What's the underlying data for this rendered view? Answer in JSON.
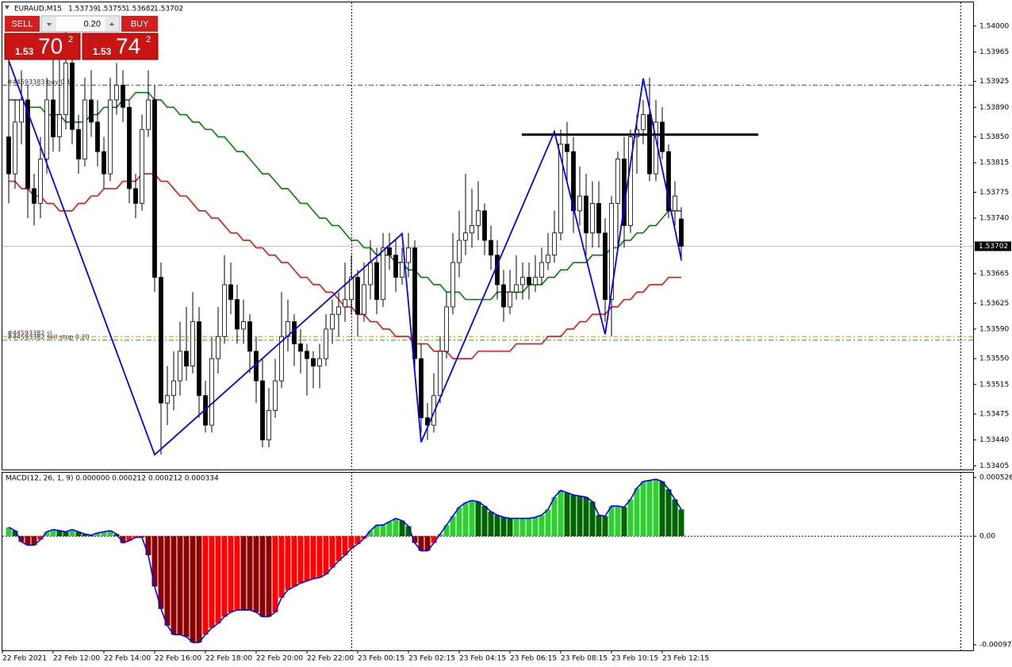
{
  "chart_data": [
    {
      "type": "candlestick",
      "symbol": "EURAUD,M15",
      "header_ohlc": [
        1.53739,
        1.53755,
        1.53682,
        1.53702
      ],
      "trade_panel": {
        "sell": "SELL",
        "buy": "BUY",
        "volume": "0.20",
        "bid": {
          "big": "1.53",
          "pips": "70",
          "point": "2"
        },
        "ask": {
          "big": "1.53",
          "pips": "74",
          "point": "2"
        }
      },
      "ylim": [
        1.534,
        1.54033
      ],
      "yticks": [
        {
          "value": 1.54,
          "label": "1.54000"
        },
        1.53965,
        1.53925,
        {
          "value": 1.5389,
          "label": "1.53890"
        },
        {
          "value": 1.5385,
          "label": "1.53850"
        },
        1.53815,
        1.53775,
        {
          "value": 1.5374,
          "label": "1.53740"
        },
        1.53665,
        1.53625,
        {
          "value": 1.5359,
          "label": "1.53590"
        },
        {
          "value": 1.5355,
          "label": "1.53550"
        },
        1.53515,
        1.53475,
        {
          "value": 1.5344,
          "label": "1.53440"
        },
        1.53405
      ],
      "time_labels": [
        "22 Feb 2021",
        "22 Feb 12:00",
        "22 Feb 14:00",
        "22 Feb 16:00",
        "22 Feb 18:00",
        "22 Feb 20:00",
        "22 Feb 22:00",
        "23 Feb 00:15",
        "23 Feb 02:15",
        "23 Feb 04:15",
        "23 Feb 06:15",
        "23 Feb 08:15",
        "23 Feb 10:15",
        "23 Feb 12:15"
      ],
      "candles": [
        [
          1.5385,
          1.5396,
          1.5376,
          1.538
        ],
        [
          1.538,
          1.539,
          1.5378,
          1.5387
        ],
        [
          1.5387,
          1.5394,
          1.5384,
          1.539
        ],
        [
          1.539,
          1.5392,
          1.5374,
          1.5378
        ],
        [
          1.5378,
          1.538,
          1.5373,
          1.5376
        ],
        [
          1.5376,
          1.5385,
          1.5374,
          1.5382
        ],
        [
          1.5382,
          1.5393,
          1.538,
          1.539
        ],
        [
          1.539,
          1.5396,
          1.5383,
          1.5385
        ],
        [
          1.5385,
          1.5399,
          1.5383,
          1.5388
        ],
        [
          1.5388,
          1.54,
          1.5386,
          1.5395
        ],
        [
          1.5395,
          1.5397,
          1.5384,
          1.5386
        ],
        [
          1.5386,
          1.5388,
          1.538,
          1.5382
        ],
        [
          1.5382,
          1.5393,
          1.5381,
          1.539
        ],
        [
          1.539,
          1.5394,
          1.5385,
          1.5387
        ],
        [
          1.5387,
          1.539,
          1.5381,
          1.5383
        ],
        [
          1.5383,
          1.5385,
          1.5378,
          1.538
        ],
        [
          1.538,
          1.5393,
          1.5379,
          1.539
        ],
        [
          1.539,
          1.5395,
          1.5388,
          1.5392
        ],
        [
          1.5392,
          1.5394,
          1.5387,
          1.5389
        ],
        [
          1.5389,
          1.539,
          1.5376,
          1.5378
        ],
        [
          1.5378,
          1.538,
          1.5374,
          1.5376
        ],
        [
          1.5376,
          1.5388,
          1.5375,
          1.5386
        ],
        [
          1.5386,
          1.5394,
          1.5385,
          1.539
        ],
        [
          1.539,
          1.5392,
          1.5364,
          1.5366
        ],
        [
          1.5366,
          1.5368,
          1.5342,
          1.5349
        ],
        [
          1.5349,
          1.5354,
          1.5346,
          1.535
        ],
        [
          1.535,
          1.5356,
          1.5348,
          1.5352
        ],
        [
          1.5352,
          1.536,
          1.535,
          1.5356
        ],
        [
          1.5356,
          1.5362,
          1.5352,
          1.5354
        ],
        [
          1.5354,
          1.5364,
          1.5353,
          1.536
        ],
        [
          1.536,
          1.5362,
          1.5347,
          1.535
        ],
        [
          1.535,
          1.5352,
          1.5345,
          1.5346
        ],
        [
          1.5346,
          1.5358,
          1.5345,
          1.5355
        ],
        [
          1.5355,
          1.5362,
          1.5353,
          1.5358
        ],
        [
          1.5358,
          1.5369,
          1.5357,
          1.5365
        ],
        [
          1.5365,
          1.5368,
          1.5361,
          1.5363
        ],
        [
          1.5363,
          1.5365,
          1.5357,
          1.5359
        ],
        [
          1.5359,
          1.5363,
          1.5357,
          1.536
        ],
        [
          1.536,
          1.5361,
          1.5353,
          1.5356
        ],
        [
          1.5356,
          1.5358,
          1.5349,
          1.5352
        ],
        [
          1.5352,
          1.5355,
          1.5343,
          1.5344
        ],
        [
          1.5344,
          1.5351,
          1.5343,
          1.5348
        ],
        [
          1.5348,
          1.5355,
          1.5347,
          1.5352
        ],
        [
          1.5352,
          1.5364,
          1.5351,
          1.5358
        ],
        [
          1.5358,
          1.5363,
          1.5356,
          1.536
        ],
        [
          1.536,
          1.5361,
          1.5354,
          1.5357
        ],
        [
          1.5357,
          1.5359,
          1.5353,
          1.5356
        ],
        [
          1.5356,
          1.5357,
          1.535,
          1.5355
        ],
        [
          1.5355,
          1.5356,
          1.5351,
          1.5354
        ],
        [
          1.5354,
          1.5357,
          1.5351,
          1.5355
        ],
        [
          1.5355,
          1.5361,
          1.5354,
          1.5359
        ],
        [
          1.5359,
          1.5363,
          1.5357,
          1.5361
        ],
        [
          1.5361,
          1.5364,
          1.5358,
          1.5362
        ],
        [
          1.5362,
          1.5368,
          1.536,
          1.5363
        ],
        [
          1.5363,
          1.5369,
          1.5361,
          1.5366
        ],
        [
          1.5366,
          1.5367,
          1.5358,
          1.5361
        ],
        [
          1.5361,
          1.5368,
          1.536,
          1.5365
        ],
        [
          1.5365,
          1.5371,
          1.5363,
          1.5368
        ],
        [
          1.5368,
          1.537,
          1.5361,
          1.5363
        ],
        [
          1.5363,
          1.5372,
          1.5362,
          1.537
        ],
        [
          1.537,
          1.5372,
          1.5367,
          1.5369
        ],
        [
          1.5369,
          1.5371,
          1.5364,
          1.5366
        ],
        [
          1.5366,
          1.537,
          1.5365,
          1.5368
        ],
        [
          1.5368,
          1.5372,
          1.5366,
          1.537
        ],
        [
          1.537,
          1.5371,
          1.5353,
          1.5355
        ],
        [
          1.5355,
          1.5357,
          1.5345,
          1.5347
        ],
        [
          1.5347,
          1.5349,
          1.5344,
          1.5346
        ],
        [
          1.5346,
          1.5353,
          1.5345,
          1.535
        ],
        [
          1.535,
          1.5358,
          1.5349,
          1.5356
        ],
        [
          1.5356,
          1.5364,
          1.5355,
          1.5362
        ],
        [
          1.5362,
          1.5372,
          1.5361,
          1.5368
        ],
        [
          1.5368,
          1.5375,
          1.5366,
          1.5371
        ],
        [
          1.5371,
          1.538,
          1.5369,
          1.5372
        ],
        [
          1.5372,
          1.5378,
          1.537,
          1.5373
        ],
        [
          1.5373,
          1.5379,
          1.5371,
          1.5375
        ],
        [
          1.5375,
          1.5376,
          1.5369,
          1.5371
        ],
        [
          1.5371,
          1.5373,
          1.5367,
          1.5369
        ],
        [
          1.5369,
          1.5371,
          1.5363,
          1.5365
        ],
        [
          1.5365,
          1.5367,
          1.536,
          1.5362
        ],
        [
          1.5362,
          1.5367,
          1.5361,
          1.5364
        ],
        [
          1.5364,
          1.5369,
          1.5363,
          1.5365
        ],
        [
          1.5365,
          1.5368,
          1.5363,
          1.5366
        ],
        [
          1.5366,
          1.5368,
          1.5363,
          1.5365
        ],
        [
          1.5365,
          1.5369,
          1.5364,
          1.5366
        ],
        [
          1.5366,
          1.537,
          1.5365,
          1.5368
        ],
        [
          1.5368,
          1.5372,
          1.5367,
          1.5369
        ],
        [
          1.5369,
          1.5375,
          1.5368,
          1.5372
        ],
        [
          1.5372,
          1.5386,
          1.5371,
          1.5384
        ],
        [
          1.5384,
          1.5387,
          1.5379,
          1.5383
        ],
        [
          1.5383,
          1.5385,
          1.5372,
          1.5375
        ],
        [
          1.5375,
          1.5381,
          1.5373,
          1.5377
        ],
        [
          1.5377,
          1.538,
          1.5369,
          1.5372
        ],
        [
          1.5372,
          1.5379,
          1.537,
          1.5376
        ],
        [
          1.5376,
          1.5379,
          1.537,
          1.5372
        ],
        [
          1.5372,
          1.5374,
          1.536,
          1.5363
        ],
        [
          1.5363,
          1.5377,
          1.5358,
          1.5376
        ],
        [
          1.5376,
          1.5383,
          1.537,
          1.5382
        ],
        [
          1.5382,
          1.5385,
          1.537,
          1.5373
        ],
        [
          1.5373,
          1.5386,
          1.5372,
          1.5385
        ],
        [
          1.5385,
          1.5388,
          1.538,
          1.5386
        ],
        [
          1.5386,
          1.539,
          1.5384,
          1.5388
        ],
        [
          1.5388,
          1.5393,
          1.5379,
          1.538
        ],
        [
          1.538,
          1.539,
          1.5379,
          1.5387
        ],
        [
          1.5387,
          1.5389,
          1.5382,
          1.5383
        ],
        [
          1.5383,
          1.5384,
          1.5374,
          1.5375
        ],
        [
          1.5375,
          1.5379,
          1.5373,
          1.5377
        ],
        [
          1.53739,
          1.53755,
          1.53682,
          1.53702
        ]
      ],
      "series": [
        {
          "color": "#008000",
          "values": [
            1.539,
            1.539,
            1.539,
            1.5389,
            1.5389,
            1.5389,
            1.5388,
            1.5388,
            1.5388,
            1.5387,
            1.5387,
            1.5387,
            1.5387,
            1.5388,
            1.5388,
            1.5389,
            1.5389,
            1.5389,
            1.539,
            1.539,
            1.5391,
            1.5391,
            1.5391,
            1.539,
            1.539,
            1.5389,
            1.5389,
            1.5388,
            1.5388,
            1.5387,
            1.5387,
            1.5386,
            1.5386,
            1.5385,
            1.5385,
            1.5384,
            1.5383,
            1.5383,
            1.5382,
            1.5381,
            1.538,
            1.538,
            1.5379,
            1.5378,
            1.5378,
            1.5377,
            1.5376,
            1.5376,
            1.5375,
            1.5374,
            1.5374,
            1.5373,
            1.5373,
            1.5372,
            1.5371,
            1.5371,
            1.537,
            1.537,
            1.5369,
            1.5369,
            1.5369,
            1.5368,
            1.5368,
            1.5367,
            1.5367,
            1.5366,
            1.5366,
            1.5365,
            1.5365,
            1.5364,
            1.5364,
            1.5364,
            1.5363,
            1.5363,
            1.5363,
            1.5363,
            1.5363,
            1.5364,
            1.5364,
            1.5364,
            1.5364,
            1.5364,
            1.5365,
            1.5365,
            1.5365,
            1.5366,
            1.5366,
            1.5367,
            1.5367,
            1.5368,
            1.5368,
            1.5368,
            1.5369,
            1.5369,
            1.5369,
            1.537,
            1.537,
            1.5371,
            1.5371,
            1.5372,
            1.5372,
            1.5373,
            1.5373,
            1.5374,
            1.5375,
            1.5375,
            1.5375
          ]
        },
        {
          "color": "#e3140f",
          "values": [
            1.5379,
            1.5379,
            1.5378,
            1.5378,
            1.5377,
            1.5377,
            1.5376,
            1.5376,
            1.5375,
            1.5375,
            1.5375,
            1.5376,
            1.5376,
            1.5377,
            1.5377,
            1.5378,
            1.5378,
            1.5378,
            1.5379,
            1.5379,
            1.5379,
            1.538,
            1.538,
            1.538,
            1.5379,
            1.5379,
            1.5378,
            1.5377,
            1.5377,
            1.5376,
            1.5375,
            1.5375,
            1.5374,
            1.5374,
            1.5373,
            1.5372,
            1.5372,
            1.5371,
            1.5371,
            1.537,
            1.537,
            1.5369,
            1.5369,
            1.5368,
            1.5368,
            1.5367,
            1.5366,
            1.5366,
            1.5365,
            1.5365,
            1.5364,
            1.5364,
            1.5363,
            1.5362,
            1.5362,
            1.5361,
            1.5361,
            1.536,
            1.536,
            1.5359,
            1.5359,
            1.5358,
            1.5358,
            1.5358,
            1.5357,
            1.5357,
            1.5357,
            1.5356,
            1.5356,
            1.5356,
            1.5355,
            1.5355,
            1.5355,
            1.5355,
            1.5356,
            1.5356,
            1.5356,
            1.5356,
            1.5356,
            1.5356,
            1.5357,
            1.5357,
            1.5357,
            1.5357,
            1.5357,
            1.5358,
            1.5358,
            1.5358,
            1.5359,
            1.5359,
            1.536,
            1.536,
            1.5361,
            1.5361,
            1.5361,
            1.5362,
            1.5362,
            1.5363,
            1.5363,
            1.5364,
            1.5364,
            1.5365,
            1.5365,
            1.5365,
            1.5366,
            1.5366,
            1.5366
          ]
        }
      ],
      "zigzag": {
        "color": "#0000ff",
        "x": [
          0,
          23,
          62,
          65,
          86,
          94,
          100,
          106
        ],
        "values": [
          1.53953,
          1.5342,
          1.53719,
          1.53437,
          1.53857,
          1.53583,
          1.53929,
          1.53684
        ]
      },
      "resistance": 1.53853,
      "levels": [
        {
          "label": "#44593383 buy 0.10",
          "value": 1.5392,
          "color": "#008000"
        },
        {
          "label": "#44593382 sl",
          "value": 1.5358,
          "color": "#ff8c00"
        },
        {
          "label": "#44593382 sell stop 0.20",
          "value": 1.53575,
          "color": "#2e8b57"
        }
      ]
    },
    {
      "type": "macd",
      "title": "MACD(12, 26, 1, 9) 0.000000 0.000212 0.000212 0.000334",
      "ylim": [
        -0.000971,
        0.000526
      ],
      "yticks": [
        0.000526,
        {
          "value": 0,
          "label": "0.00"
        },
        -0.000971
      ],
      "colors": {
        "rise_pos": "#32cd32",
        "fall_pos": "#006400",
        "rise_neg": "#ff0000",
        "fall_neg": "#8b0000",
        "line": "#0000ff"
      },
      "values": [
        8e-05,
        5e-05,
        -5e-05,
        -8e-05,
        -8e-05,
        -3e-05,
        4e-05,
        6e-05,
        5e-05,
        4e-05,
        6e-05,
        4e-05,
        2e-05,
        1e-05,
        3e-05,
        4e-05,
        5e-05,
        2e-05,
        -6e-05,
        -4e-05,
        -1e-05,
        -1e-05,
        -0.00017,
        -0.00045,
        -0.00065,
        -0.0008,
        -0.00088,
        -0.00088,
        -0.0009,
        -0.00095,
        -0.00095,
        -0.00088,
        -0.00082,
        -0.00078,
        -0.00072,
        -0.00068,
        -0.00066,
        -0.00066,
        -0.00066,
        -0.00068,
        -0.00072,
        -0.00072,
        -0.00068,
        -0.00055,
        -0.00048,
        -0.00045,
        -0.00042,
        -0.0004,
        -0.00038,
        -0.00037,
        -0.00034,
        -0.00028,
        -0.00022,
        -0.00017,
        -0.00011,
        -7e-05,
        -2e-05,
        5e-05,
        0.0001,
        0.0001,
        0.00013,
        0.00016,
        0.00014,
        9e-05,
        -6e-05,
        -0.00013,
        -0.00013,
        -6e-05,
        2e-05,
        0.0001,
        0.00018,
        0.00026,
        0.0003,
        0.00032,
        0.00031,
        0.00027,
        0.00022,
        0.00019,
        0.00017,
        0.00016,
        0.00016,
        0.00016,
        0.00016,
        0.00017,
        0.00019,
        0.00024,
        0.00035,
        0.00041,
        0.00039,
        0.00037,
        0.00036,
        0.00035,
        0.00031,
        0.00019,
        0.00018,
        0.00027,
        0.00027,
        0.00026,
        0.00033,
        0.00043,
        0.00049,
        0.0005,
        0.00051,
        0.00049,
        0.00042,
        0.00033,
        0.00024
      ]
    }
  ]
}
